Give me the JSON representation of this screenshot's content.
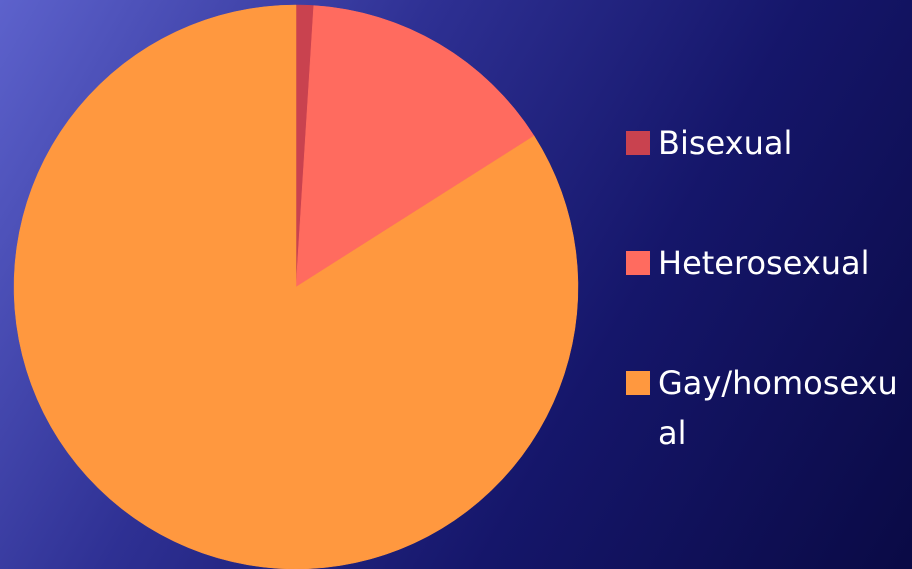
{
  "chart_data": {
    "type": "pie",
    "categories": [
      "Bisexual",
      "Heterosexual",
      "Gay/homosexual"
    ],
    "values": [
      1,
      15,
      84
    ],
    "colors": [
      "#c9424f",
      "#ff6b5f",
      "#ff983f"
    ]
  }
}
